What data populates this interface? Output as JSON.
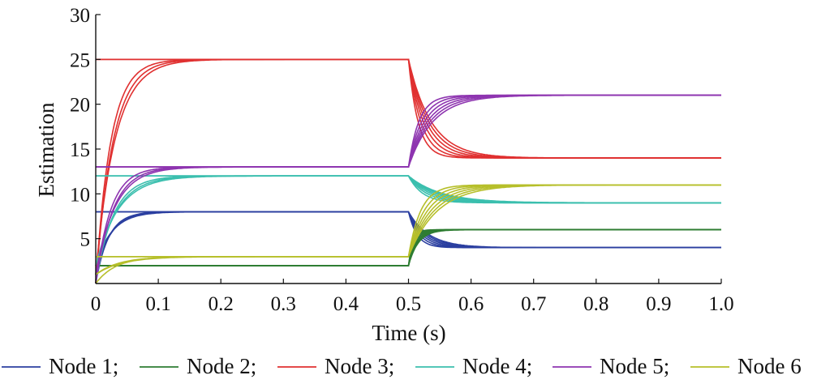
{
  "chart_data": {
    "type": "line",
    "title": "",
    "xlabel": "Time (s)",
    "ylabel": "Estimation",
    "xlim": [
      0,
      1.0
    ],
    "ylim": [
      0,
      30
    ],
    "xticks": [
      0,
      0.1,
      0.2,
      0.3,
      0.4,
      0.5,
      0.6,
      0.7,
      0.8,
      0.9,
      1.0
    ],
    "xtick_labels": [
      "0",
      "0.1",
      "0.2",
      "0.3",
      "0.4",
      "0.5",
      "0.6",
      "0.7",
      "0.8",
      "0.9",
      "1.0"
    ],
    "yticks": [
      5,
      10,
      15,
      20,
      25,
      30
    ],
    "ytick_labels": [
      "5",
      "10",
      "15",
      "20",
      "25",
      "30"
    ],
    "grid": false,
    "legend_position": "bottom",
    "switch_time": 0.5,
    "series": [
      {
        "name": "Node 1;",
        "color": "#2b3fa0",
        "value_before": 8,
        "value_after": 4,
        "initial_values": [
          0,
          1,
          2,
          8,
          8,
          8
        ],
        "time_constant_before": 0.025,
        "time_constant_after": 0.025
      },
      {
        "name": "Node 2;",
        "color": "#2e7d32",
        "value_before": 2,
        "value_after": 6,
        "initial_values": [
          2,
          2,
          2,
          2,
          2,
          2
        ],
        "time_constant_before": 0.02,
        "time_constant_after": 0.012
      },
      {
        "name": "Node 3;",
        "color": "#e03030",
        "value_before": 25,
        "value_after": 14,
        "initial_values": [
          0,
          0,
          1,
          25,
          25,
          25
        ],
        "time_constant_before": 0.03,
        "time_constant_after": 0.028
      },
      {
        "name": "Node 4;",
        "color": "#3bbfae",
        "value_before": 12,
        "value_after": 9,
        "initial_values": [
          0,
          1,
          2,
          12,
          12,
          12
        ],
        "time_constant_before": 0.035,
        "time_constant_after": 0.04
      },
      {
        "name": "Node 5;",
        "color": "#8e35b0",
        "value_before": 13,
        "value_after": 21,
        "initial_values": [
          0,
          0,
          1,
          13,
          13,
          13
        ],
        "time_constant_before": 0.03,
        "time_constant_after": 0.03
      },
      {
        "name": "Node 6",
        "color": "#b6bf2a",
        "value_before": 3,
        "value_after": 11,
        "initial_values": [
          0,
          1,
          1,
          3,
          3,
          3
        ],
        "time_constant_before": 0.04,
        "time_constant_after": 0.035
      }
    ]
  }
}
